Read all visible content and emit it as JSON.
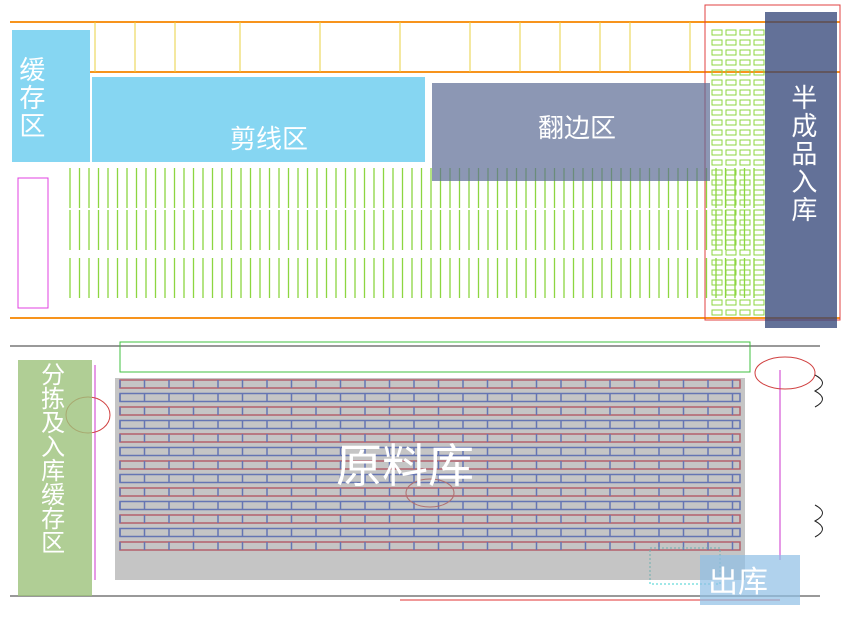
{
  "zones": {
    "buffer": {
      "label": "缓存区",
      "color": "#5ec8ee"
    },
    "shear": {
      "label": "剪线区",
      "color": "#5ec8ee"
    },
    "flip": {
      "label": "翻边区",
      "color": "#5b6b94"
    },
    "semi_finished": {
      "label": "半成品入库",
      "color": "#2f4275"
    },
    "raw_material": {
      "label": "原料库",
      "color": "#a9a9a9"
    },
    "sorting_buffer": {
      "label": "分拣及入库缓存区",
      "color": "#9cc27a"
    },
    "outbound": {
      "label": "出库",
      "color": "#8fbfe6"
    }
  },
  "colors": {
    "wall": "#f7941d",
    "rack_green": "#8cd640",
    "rack_blue": "#2a4fd8",
    "rack_red": "#d8203a",
    "magenta": "#cc33cc"
  }
}
